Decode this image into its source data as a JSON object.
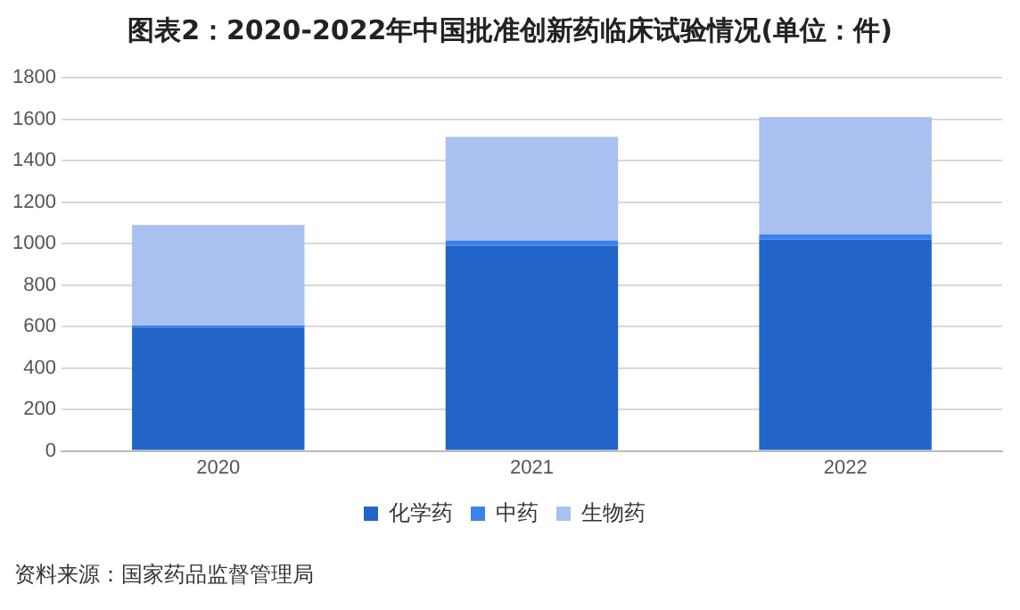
{
  "chart_data": {
    "type": "bar",
    "stacked": true,
    "title": "图表2：2020-2022年中国批准创新药临床试验情况(单位：件)",
    "categories": [
      "2020",
      "2021",
      "2022"
    ],
    "series": [
      {
        "name": "化学药",
        "color": "#2264c8",
        "values": [
          595,
          990,
          1020
        ]
      },
      {
        "name": "中药",
        "color": "#3b82f0",
        "values": [
          10,
          25,
          25
        ]
      },
      {
        "name": "生物药",
        "color": "#a9c0f0",
        "values": [
          485,
          500,
          565
        ]
      }
    ],
    "ylim": [
      0,
      1800
    ],
    "yticks": [
      0,
      200,
      400,
      600,
      800,
      1000,
      1200,
      1400,
      1600,
      1800
    ],
    "grid": "y",
    "legend": "bottom",
    "annotations": [
      "资料来源：国家药品监督管理局"
    ]
  }
}
